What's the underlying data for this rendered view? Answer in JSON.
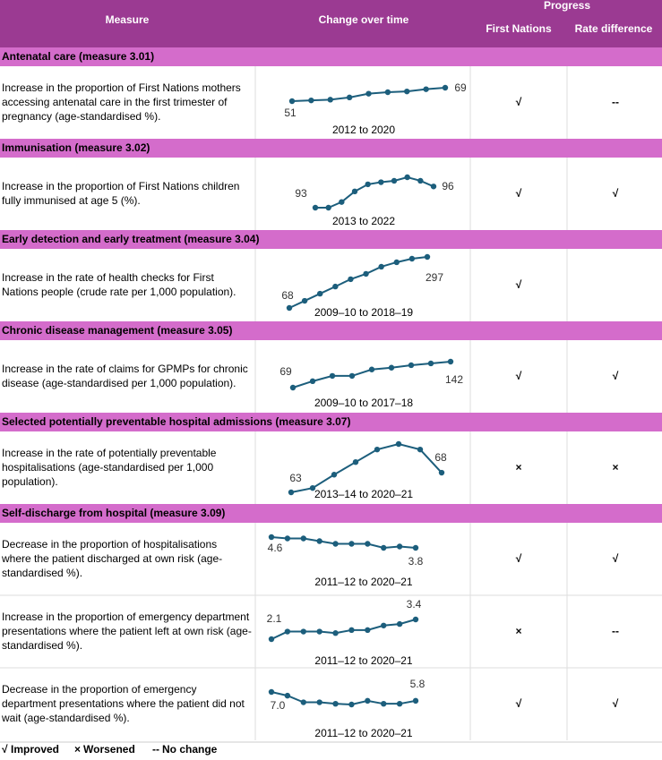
{
  "header": {
    "measure": "Measure",
    "change": "Change over time",
    "progress": "Progress",
    "first_nations": "First Nations",
    "rate_difference": "Rate difference"
  },
  "legend": {
    "improved": {
      "symbol": "√",
      "label": "Improved"
    },
    "worsened": {
      "symbol": "×",
      "label": "Worsened"
    },
    "no_change": {
      "symbol": "--",
      "label": "No change"
    }
  },
  "sections": [
    {
      "title": "Antenatal care (measure 3.01)",
      "rows": [
        {
          "description": [
            "Increase in the proportion of First Nations mothers",
            "accessing antenatal care in the first trimester of",
            "pregnancy (age-standardised %)."
          ],
          "period": "2012 to 2020",
          "values": [
            51,
            52,
            53,
            56,
            61,
            63,
            64,
            67,
            69
          ],
          "value_labels": [
            "51",
            null,
            null,
            null,
            null,
            null,
            null,
            null,
            "69"
          ],
          "first_nations": "improved",
          "rate_difference": "no_change"
        }
      ]
    },
    {
      "title": "Immunisation (measure 3.02)",
      "rows": [
        {
          "description": [
            "Increase in the proportion of First Nations children",
            "fully immunised at age 5 (%)."
          ],
          "period": "2013 to 2022",
          "values": [
            93,
            93,
            93.8,
            95.3,
            96.3,
            96.6,
            96.8,
            97.3,
            96.8,
            96
          ],
          "value_labels": [
            "93",
            null,
            null,
            null,
            null,
            null,
            null,
            null,
            null,
            "96"
          ],
          "first_nations": "improved",
          "rate_difference": "improved"
        }
      ]
    },
    {
      "title": "Early detection and early treatment (measure 3.04)",
      "rows": [
        {
          "description": [
            "Increase in the rate of health checks for First",
            "Nations people (crude rate per 1,000 population)."
          ],
          "period": "2009–10 to 2018–19",
          "values": [
            68,
            100,
            132,
            164,
            197,
            221,
            253,
            273,
            289,
            297
          ],
          "value_labels": [
            "68",
            null,
            null,
            null,
            null,
            null,
            null,
            null,
            null,
            "297"
          ],
          "first_nations": "improved",
          "rate_difference": null
        }
      ]
    },
    {
      "title": "Chronic disease management (measure 3.05)",
      "rows": [
        {
          "description": [
            "Increase in the rate of claims for GPMPs for chronic",
            "disease (age-standardised per 1,000 population)."
          ],
          "period": "2009–10 to 2017–18",
          "values": [
            69,
            87,
            102,
            102,
            120,
            125,
            132,
            137,
            142
          ],
          "value_labels": [
            "69",
            null,
            null,
            null,
            null,
            null,
            null,
            null,
            "142"
          ],
          "first_nations": "improved",
          "rate_difference": "improved"
        }
      ]
    },
    {
      "title": "Selected potentially preventable hospital admissions (measure 3.07)",
      "rows": [
        {
          "description": [
            "Increase in the rate of potentially preventable",
            "hospitalisations (age-standardised per 1,000",
            "population)."
          ],
          "period": "2013–14 to 2020–21",
          "values": [
            63,
            64.1,
            67.5,
            70.7,
            73.9,
            75.3,
            73.9,
            68
          ],
          "value_labels": [
            "63",
            null,
            null,
            null,
            null,
            null,
            null,
            "68"
          ],
          "first_nations": "worsened",
          "rate_difference": "worsened"
        }
      ]
    },
    {
      "title": "Self-discharge from hospital (measure 3.09)",
      "rows": [
        {
          "description": [
            "Decrease in the proportion of hospitalisations",
            "where the patient discharged at own risk (age-",
            "standardised %)."
          ],
          "period": "2011–12 to 2020–21",
          "values": [
            4.6,
            4.5,
            4.5,
            4.3,
            4.1,
            4.1,
            4.1,
            3.8,
            3.9,
            3.8
          ],
          "value_labels": [
            "4.6",
            null,
            null,
            null,
            null,
            null,
            null,
            null,
            null,
            "3.8"
          ],
          "first_nations": "improved",
          "rate_difference": "improved"
        },
        {
          "description": [
            "Increase in the proportion of emergency department",
            "presentations where the patient left at own risk (age-",
            "standardised %)."
          ],
          "period": "2011–12 to 2020–21",
          "values": [
            2.1,
            2.6,
            2.6,
            2.6,
            2.5,
            2.7,
            2.7,
            3.0,
            3.1,
            3.4
          ],
          "value_labels": [
            "2.1",
            null,
            null,
            null,
            null,
            null,
            null,
            null,
            null,
            "3.4"
          ],
          "first_nations": "worsened",
          "rate_difference": "no_change"
        },
        {
          "description": [
            "Decrease in the proportion of emergency",
            "department presentations where the patient did not",
            "wait (age-standardised %)."
          ],
          "period": "2011–12 to 2020–21",
          "values": [
            7.0,
            6.5,
            5.6,
            5.6,
            5.4,
            5.3,
            5.8,
            5.4,
            5.4,
            5.8
          ],
          "value_labels": [
            "7.0",
            null,
            null,
            null,
            null,
            null,
            null,
            null,
            null,
            "5.8"
          ],
          "first_nations": "improved",
          "rate_difference": "improved"
        }
      ]
    }
  ]
}
